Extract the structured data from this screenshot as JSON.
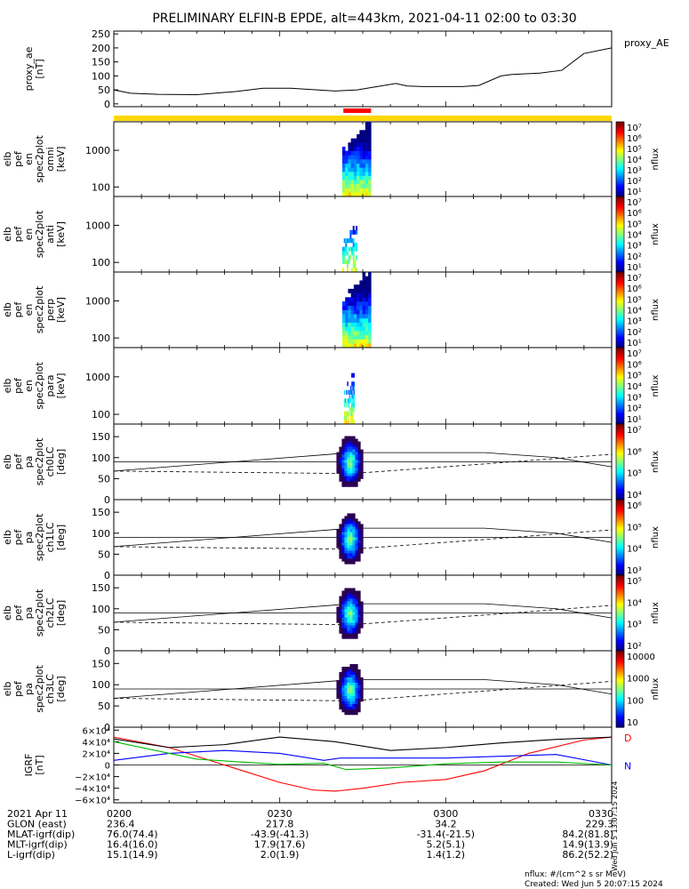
{
  "title": "PRELIMINARY ELFIN-B EPDE, alt=443km, 2021-04-11 02:00 to 03:30",
  "annotations": {
    "flux_unit": "nflux: #/(cm^2 s sr MeV)",
    "created": "Created: Wed Jun  5 20:07:15 2024",
    "side_timestamp": "Wed Jun  5 13:07:15 2024"
  },
  "chart_data": [
    {
      "id": "proxy_ae",
      "type": "line",
      "ylabel": "proxy_ae [nT]",
      "legend": "proxy_AE",
      "ylim": [
        -10,
        260
      ],
      "yticks": [
        0,
        50,
        100,
        150,
        200,
        250
      ],
      "x_minutes": [
        0,
        3,
        8,
        15,
        22,
        27,
        32,
        40,
        44,
        51,
        53,
        56,
        63,
        66,
        70,
        72,
        77,
        81,
        85,
        90
      ],
      "values": [
        50,
        38,
        34,
        33,
        44,
        56,
        56,
        46,
        50,
        73,
        64,
        62,
        62,
        66,
        100,
        105,
        110,
        120,
        180,
        200
      ],
      "colors": {
        "line": "#000000",
        "mode_bar": "#ffd700",
        "science_bar": "#ff0000"
      },
      "science_interval_minutes": [
        41.5,
        46.5
      ]
    },
    {
      "id": "spec_omni",
      "type": "heatmap",
      "ylabel": "elb pef en spec2plot omni [keV]",
      "y_scale": "log",
      "yticks": [
        "100",
        "1000"
      ],
      "ylim": [
        55,
        6000
      ],
      "colorbar": {
        "label": "nflux",
        "ticks": [
          "10^1",
          "10^2",
          "10^3",
          "10^4",
          "10^5",
          "10^6",
          "10^7"
        ]
      },
      "event_minutes": [
        41.3,
        46.5
      ]
    },
    {
      "id": "spec_anti",
      "type": "heatmap",
      "ylabel": "elb pef en spec2plot anti [keV]",
      "y_scale": "log",
      "yticks": [
        "100",
        "1000"
      ],
      "ylim": [
        55,
        6000
      ],
      "colorbar": {
        "label": "nflux",
        "ticks": [
          "10^1",
          "10^2",
          "10^3",
          "10^4",
          "10^5",
          "10^6",
          "10^7"
        ]
      },
      "event_minutes": [
        41.3,
        44.0
      ]
    },
    {
      "id": "spec_perp",
      "type": "heatmap",
      "ylabel": "elb pef en spec2plot perp [keV]",
      "y_scale": "log",
      "yticks": [
        "100",
        "1000"
      ],
      "ylim": [
        55,
        6000
      ],
      "colorbar": {
        "label": "nflux",
        "ticks": [
          "10^1",
          "10^2",
          "10^3",
          "10^4",
          "10^5",
          "10^6",
          "10^7"
        ]
      },
      "event_minutes": [
        41.3,
        46.5
      ]
    },
    {
      "id": "spec_para",
      "type": "heatmap",
      "ylabel": "elb pef en spec2plot para [keV]",
      "y_scale": "log",
      "yticks": [
        "100",
        "1000"
      ],
      "ylim": [
        55,
        6000
      ],
      "colorbar": {
        "label": "nflux",
        "ticks": [
          "10^1",
          "10^2",
          "10^3",
          "10^4",
          "10^5",
          "10^6",
          "10^7"
        ]
      },
      "event_minutes": [
        41.6,
        43.5
      ]
    },
    {
      "id": "pa_ch0",
      "type": "heatmap",
      "ylabel": "elb pef pa spec2plot ch0LC [deg]",
      "yticks": [
        0,
        50,
        100,
        150
      ],
      "ylim": [
        0,
        180
      ],
      "colorbar": {
        "label": "nflux",
        "ticks": [
          "10^4",
          "10^5",
          "10^6",
          "10^7"
        ]
      },
      "lc_solid_minutes": [
        0,
        43,
        67,
        80,
        90
      ],
      "lc_solid_deg": [
        68,
        112,
        112,
        100,
        78
      ],
      "lc_dashed_minutes": [
        0,
        43,
        67,
        90
      ],
      "lc_dashed_deg": [
        68,
        62,
        85,
        108
      ],
      "ref_line_deg": 90,
      "blob_center": [
        42.5,
        92
      ]
    },
    {
      "id": "pa_ch1",
      "type": "heatmap",
      "ylabel": "elb pef pa spec2plot ch1LC [deg]",
      "yticks": [
        0,
        50,
        100,
        150
      ],
      "ylim": [
        0,
        180
      ],
      "colorbar": {
        "label": "nflux",
        "ticks": [
          "10^3",
          "10^4",
          "10^5",
          "10^6"
        ]
      },
      "lc_solid_minutes": [
        0,
        43,
        67,
        80,
        90
      ],
      "lc_solid_deg": [
        68,
        112,
        112,
        100,
        78
      ],
      "lc_dashed_minutes": [
        0,
        43,
        67,
        90
      ],
      "lc_dashed_deg": [
        68,
        62,
        85,
        108
      ],
      "ref_line_deg": 90,
      "blob_center": [
        42.5,
        88
      ]
    },
    {
      "id": "pa_ch2",
      "type": "heatmap",
      "ylabel": "elb pef pa spec2plot ch2LC [deg]",
      "yticks": [
        0,
        50,
        100,
        150
      ],
      "ylim": [
        0,
        180
      ],
      "colorbar": {
        "label": "nflux",
        "ticks": [
          "10^2",
          "10^3",
          "10^4",
          "10^5"
        ]
      },
      "lc_solid_minutes": [
        0,
        43,
        67,
        80,
        90
      ],
      "lc_solid_deg": [
        68,
        112,
        112,
        100,
        78
      ],
      "lc_dashed_minutes": [
        0,
        43,
        67,
        90
      ],
      "lc_dashed_deg": [
        68,
        62,
        85,
        108
      ],
      "ref_line_deg": 90,
      "blob_center": [
        42.5,
        90
      ]
    },
    {
      "id": "pa_ch3",
      "type": "heatmap",
      "ylabel": "elb pef pa spec2plot ch3LC [deg]",
      "yticks": [
        0,
        50,
        100,
        150
      ],
      "ylim": [
        0,
        180
      ],
      "colorbar": {
        "label": "nflux",
        "ticks": [
          "10",
          "100",
          "1000",
          "10000"
        ]
      },
      "lc_solid_minutes": [
        0,
        43,
        67,
        80,
        90
      ],
      "lc_solid_deg": [
        68,
        112,
        112,
        100,
        78
      ],
      "lc_dashed_minutes": [
        0,
        43,
        67,
        90
      ],
      "lc_dashed_deg": [
        68,
        62,
        85,
        108
      ],
      "ref_line_deg": 90,
      "blob_center": [
        42.5,
        90
      ]
    },
    {
      "id": "igrf",
      "type": "line",
      "ylabel": "IGRF [nT]",
      "ylim": [
        -65000,
        65000
      ],
      "yticks": [
        {
          "v": 60000,
          "t": "6×10⁴"
        },
        {
          "v": 40000,
          "t": "4×10⁴"
        },
        {
          "v": 20000,
          "t": "2×10⁴"
        },
        {
          "v": 0,
          "t": "0"
        },
        {
          "v": -20000,
          "t": "−2×10⁴"
        },
        {
          "v": -40000,
          "t": "−4×10⁴"
        },
        {
          "v": -60000,
          "t": "−6×10⁴"
        }
      ],
      "series": [
        {
          "name": "D",
          "color": "#ff0000",
          "x": [
            0,
            10,
            20,
            30,
            36,
            40,
            45,
            52,
            60,
            67,
            75,
            85,
            90
          ],
          "y": [
            48000,
            30000,
            0,
            -30000,
            -43000,
            -45000,
            -40000,
            -30000,
            -25000,
            -10000,
            20000,
            43000,
            48000
          ]
        },
        {
          "name": "N",
          "color": "#0000ff",
          "x": [
            0,
            10,
            20,
            30,
            38,
            41,
            50,
            60,
            70,
            80,
            90
          ],
          "y": [
            8000,
            20000,
            25000,
            20000,
            8000,
            12000,
            12000,
            12000,
            15000,
            18000,
            0
          ]
        },
        {
          "name": "",
          "color": "#000000",
          "x": [
            0,
            10,
            20,
            30,
            40,
            50,
            60,
            70,
            80,
            90
          ],
          "y": [
            45000,
            30000,
            35000,
            48000,
            40000,
            25000,
            30000,
            38000,
            44000,
            48000
          ]
        },
        {
          "name": "",
          "color": "#00bb00",
          "x": [
            0,
            15,
            30,
            38,
            42,
            50,
            60,
            70,
            80,
            90
          ],
          "y": [
            40000,
            10000,
            1000,
            3000,
            -8000,
            -5000,
            2000,
            5000,
            5000,
            0
          ]
        }
      ]
    }
  ],
  "x_axis_rows": [
    {
      "label": "2021 Apr 11",
      "values": [
        "0200",
        "0230",
        "0300",
        "0330"
      ]
    },
    {
      "label": "GLON (east)",
      "values": [
        "236.4",
        "217.8",
        "34.2",
        "229.3"
      ]
    },
    {
      "label": "MLAT-igrf(dip)",
      "values": [
        "76.0(74.4)",
        "-43.9(-41.3)",
        "-31.4(-21.5)",
        "84.2(81.8)"
      ]
    },
    {
      "label": "MLT-igrf(dip)",
      "values": [
        "16.4(16.0)",
        "17.9(17.6)",
        "5.2(5.1)",
        "14.9(13.9)"
      ]
    },
    {
      "label": "L-igrf(dip)",
      "values": [
        "15.1(14.9)",
        "2.0(1.9)",
        "1.4(1.2)",
        "86.2(52.2)"
      ]
    }
  ]
}
